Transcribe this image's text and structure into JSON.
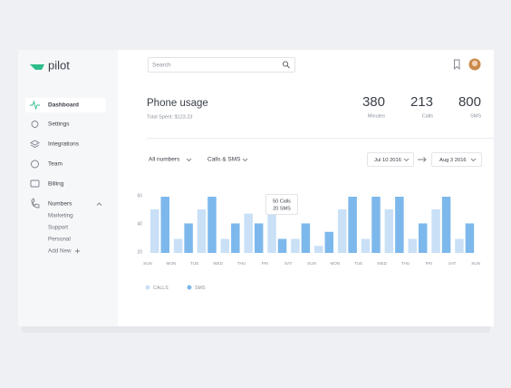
{
  "sidebar": {
    "logo": "pilot",
    "nav": [
      "Dashboard",
      "Settings",
      "Integrations",
      "Team",
      "Billing",
      "Numbers"
    ],
    "subnav": [
      "Marketing",
      "Support",
      "Personal",
      "Add New"
    ]
  },
  "search": {
    "placeholder": "Search"
  },
  "header": {
    "title": "Phone usage",
    "subtitle": "Total Spent: $123.23",
    "stats": [
      {
        "value": 380,
        "label": "Minutes"
      },
      {
        "value": 213,
        "label": "Calls"
      },
      {
        "value": 800,
        "label": "SMS"
      }
    ]
  },
  "filters": {
    "numbers": "All numbers",
    "kind": "Calls & SMS",
    "from": "Jul 10 2016",
    "to": "Aug 3 2016"
  },
  "chart_data": {
    "type": "bar",
    "categories": [
      "SUN",
      "MON",
      "TUE",
      "WED",
      "THU",
      "FRI",
      "SAT",
      "SUN",
      "MON",
      "TUE",
      "WED",
      "THU",
      "FRI",
      "SAT",
      "SUN"
    ],
    "series": [
      {
        "name": "CALLS",
        "color": "#c9e0f6",
        "values": [
          51,
          30,
          51,
          30,
          48,
          48,
          30,
          25,
          51,
          30,
          51,
          30,
          51,
          30,
          null
        ]
      },
      {
        "name": "SMS",
        "color": "#7db8ec",
        "values": [
          60,
          41,
          60,
          41,
          41,
          30,
          41,
          35,
          60,
          60,
          60,
          41,
          60,
          41,
          null
        ]
      }
    ],
    "ylim": [
      20,
      60
    ],
    "yticks": [
      20,
      40,
      60
    ],
    "annotations": [
      "50 Calls",
      "20 SMS"
    ]
  }
}
